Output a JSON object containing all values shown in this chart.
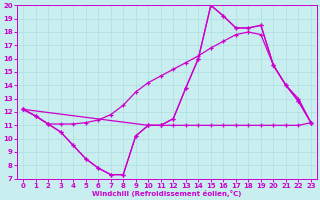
{
  "xlabel": "Windchill (Refroidissement éolien,°C)",
  "xlim": [
    -0.5,
    23.5
  ],
  "ylim": [
    7,
    20
  ],
  "xticks": [
    0,
    1,
    2,
    3,
    4,
    5,
    6,
    7,
    8,
    9,
    10,
    11,
    12,
    13,
    14,
    15,
    16,
    17,
    18,
    19,
    20,
    21,
    22,
    23
  ],
  "yticks": [
    7,
    8,
    9,
    10,
    11,
    12,
    13,
    14,
    15,
    16,
    17,
    18,
    19,
    20
  ],
  "bg_color": "#c8eef0",
  "grid_color": "#b0dde0",
  "line_color": "#cc00cc",
  "line1_x": [
    0,
    1,
    2,
    3,
    4,
    5,
    6,
    7,
    8,
    9,
    10,
    11,
    12,
    13,
    14,
    15,
    16,
    17,
    18,
    19,
    20,
    21,
    22,
    23
  ],
  "line1_y": [
    12.2,
    11.7,
    11.1,
    10.5,
    9.5,
    8.5,
    7.8,
    7.3,
    7.3,
    10.2,
    11.0,
    11.0,
    11.0,
    11.0,
    11.0,
    11.0,
    11.0,
    11.0,
    11.0,
    11.0,
    11.0,
    11.0,
    11.0,
    11.2
  ],
  "line2_x": [
    0,
    1,
    2,
    3,
    4,
    5,
    6,
    7,
    8,
    9,
    10,
    11,
    12,
    13,
    14,
    15,
    16,
    17,
    18,
    19,
    20,
    21,
    22,
    23
  ],
  "line2_y": [
    12.2,
    11.7,
    11.1,
    11.1,
    11.1,
    11.2,
    11.4,
    11.8,
    12.5,
    13.5,
    14.2,
    14.7,
    15.2,
    15.7,
    16.2,
    16.8,
    17.3,
    17.8,
    18.0,
    17.8,
    15.5,
    14.0,
    13.0,
    11.2
  ],
  "line3_x": [
    0,
    1,
    2,
    3,
    4,
    5,
    6,
    7,
    8,
    9,
    10,
    11,
    12,
    13,
    14,
    15,
    16,
    17,
    18,
    19,
    20,
    21,
    22,
    23
  ],
  "line3_y": [
    12.2,
    11.7,
    11.1,
    10.5,
    9.5,
    8.5,
    7.8,
    7.3,
    7.3,
    10.2,
    11.0,
    11.0,
    11.5,
    13.8,
    16.0,
    20.0,
    19.2,
    18.3,
    18.3,
    18.5,
    15.5,
    14.0,
    12.8,
    11.2
  ],
  "line4_x": [
    0,
    10,
    11,
    12,
    13,
    14,
    15,
    16,
    17,
    18,
    19,
    20,
    21,
    22,
    23
  ],
  "line4_y": [
    12.2,
    11.0,
    11.0,
    11.5,
    13.8,
    16.0,
    20.0,
    19.2,
    18.3,
    18.3,
    18.5,
    15.5,
    14.0,
    12.8,
    11.2
  ]
}
